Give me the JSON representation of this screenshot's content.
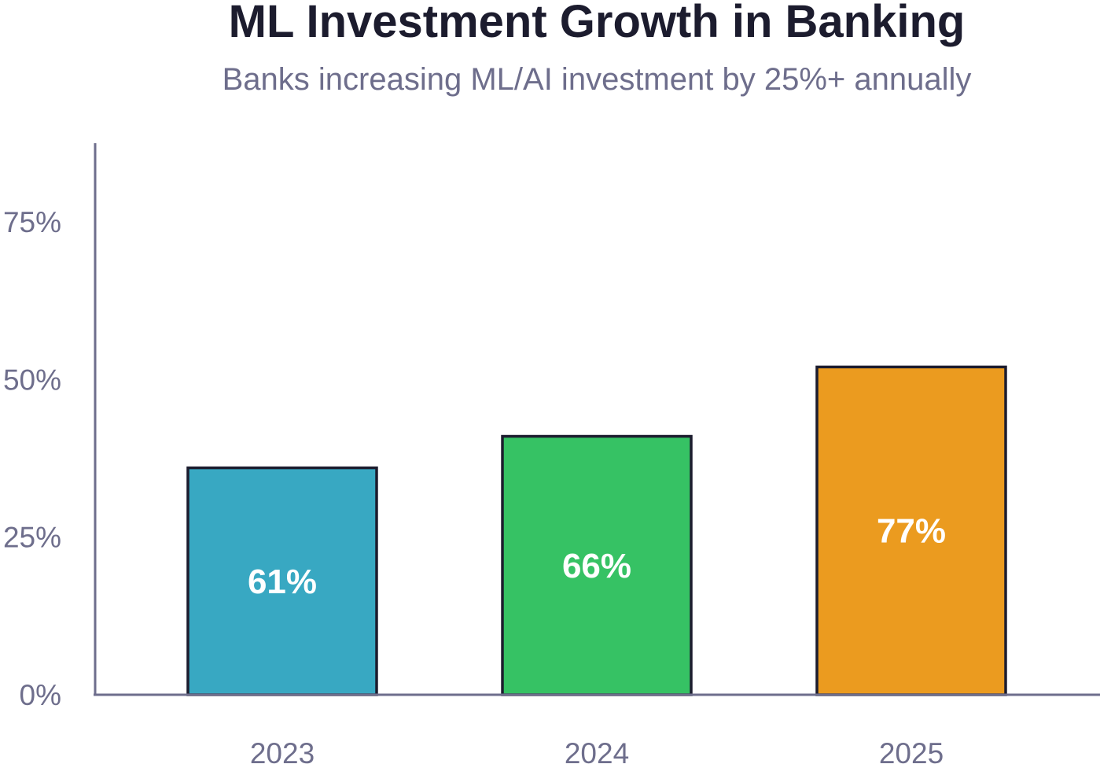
{
  "chart_data": {
    "type": "bar",
    "title": "ML Investment Growth in Banking",
    "subtitle": "Banks increasing ML/AI investment by 25%+ annually",
    "categories": [
      "2023",
      "2024",
      "2025"
    ],
    "values": [
      61,
      66,
      77
    ],
    "value_labels": [
      "61%",
      "66%",
      "77%"
    ],
    "bar_colors": [
      "#38a8c2",
      "#36c264",
      "#eb9b1f"
    ],
    "bar_outline_color": "#1c1c2e",
    "axis_color": "#6e6e8c",
    "y_ticks": [
      0,
      25,
      50,
      75
    ],
    "y_tick_labels": [
      "0%",
      "25%",
      "50%",
      "75%"
    ],
    "ylim": [
      0,
      87.5
    ],
    "xlabel": "",
    "ylabel": "",
    "grid": false,
    "legend": "none"
  }
}
